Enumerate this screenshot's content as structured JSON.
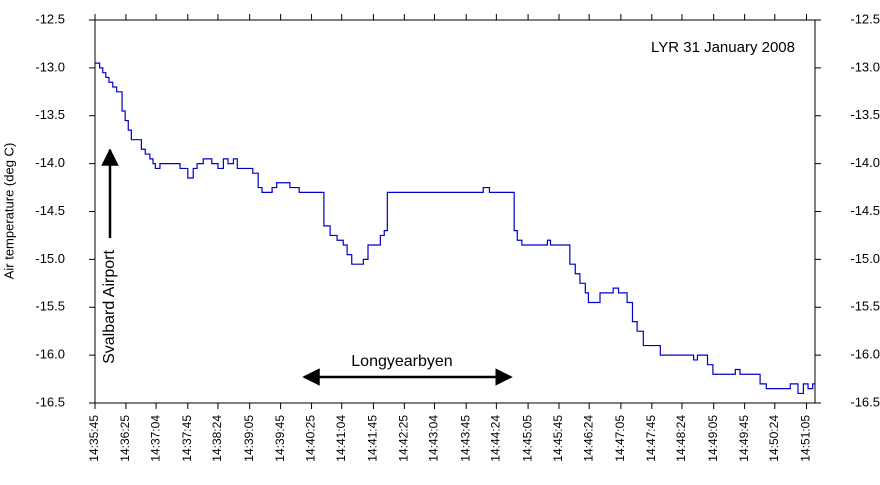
{
  "chart_data": {
    "type": "line",
    "title": "LYR 31 January 2008",
    "y_label": "Air temperature (deg C)",
    "annotations": [
      "Svalbard Airport",
      "Longyearbyen"
    ],
    "step": true,
    "xlim": [
      "14:35:45",
      "14:51:16"
    ],
    "xticks": [
      "14:35:45",
      "14:36:25",
      "14:37:04",
      "14:37:45",
      "14:38:24",
      "14:39:05",
      "14:39:45",
      "14:40:25",
      "14:41:04",
      "14:41:45",
      "14:42:25",
      "14:43:04",
      "14:43:45",
      "14:44:24",
      "14:45:05",
      "14:45:45",
      "14:46:24",
      "14:47:05",
      "14:47:45",
      "14:48:24",
      "14:49:05",
      "14:49:45",
      "14:50:24",
      "14:51:05"
    ],
    "ylim": [
      -16.5,
      -12.5
    ],
    "yticks": [
      -12.5,
      {
        "value": -13,
        "label": "-13.0"
      },
      -13.5,
      {
        "value": -14,
        "label": "-14.0"
      },
      -14.5,
      {
        "value": -15,
        "label": "-15.0"
      },
      -15.5,
      {
        "value": -16,
        "label": "-16.0"
      },
      -16.5
    ],
    "y2lim": [
      -16.5,
      -12.5
    ],
    "y2ticks": [
      -12.5,
      {
        "value": -13,
        "label": "-13.0"
      },
      -13.5,
      {
        "value": -14,
        "label": "-14.0"
      },
      -14.5,
      {
        "value": -15,
        "label": "-15.0"
      },
      -15.5,
      {
        "value": -16,
        "label": "-16.0"
      },
      -16.5
    ],
    "x": [
      "14:35:45",
      "14:35:51",
      "14:35:55",
      "14:35:59",
      "14:36:03",
      "14:36:08",
      "14:36:13",
      "14:36:20",
      "14:36:24",
      "14:36:28",
      "14:36:32",
      "14:36:45",
      "14:36:50",
      "14:36:56",
      "14:37:00",
      "14:37:03",
      "14:37:09",
      "14:37:35",
      "14:37:45",
      "14:37:52",
      "14:37:57",
      "14:38:05",
      "14:38:16",
      "14:38:24",
      "14:38:31",
      "14:38:37",
      "14:38:44",
      "14:38:49",
      "14:39:09",
      "14:39:16",
      "14:39:21",
      "14:39:34",
      "14:39:40",
      "14:39:57",
      "14:40:09",
      "14:40:41",
      "14:40:49",
      "14:40:58",
      "14:41:06",
      "14:41:11",
      "14:41:17",
      "14:41:32",
      "14:41:38",
      "14:41:54",
      "14:41:59",
      "14:42:03",
      "14:44:07",
      "14:44:15",
      "14:44:47",
      "14:44:51",
      "14:44:57",
      "14:45:30",
      "14:45:34",
      "14:45:59",
      "14:46:06",
      "14:46:12",
      "14:46:19",
      "14:46:23",
      "14:46:38",
      "14:46:55",
      "14:47:02",
      "14:47:13",
      "14:47:20",
      "14:47:26",
      "14:47:34",
      "14:47:56",
      "14:48:39",
      "14:48:44",
      "14:48:57",
      "14:49:04",
      "14:49:33",
      "14:49:39",
      "14:50:05",
      "14:50:13",
      "14:50:44",
      "14:50:54",
      "14:51:01",
      "14:51:07",
      "14:51:13"
    ],
    "series": [
      {
        "color": "#0000cc",
        "values": [
          -12.95,
          -13.0,
          -13.05,
          -13.1,
          -13.15,
          -13.2,
          -13.25,
          -13.45,
          -13.55,
          -13.65,
          -13.75,
          -13.85,
          -13.9,
          -13.95,
          -14.0,
          -14.05,
          -14.0,
          -14.05,
          -14.15,
          -14.05,
          -14.0,
          -13.95,
          -14.0,
          -14.05,
          -13.95,
          -14.0,
          -13.95,
          -14.05,
          -14.1,
          -14.25,
          -14.3,
          -14.25,
          -14.2,
          -14.25,
          -14.3,
          -14.65,
          -14.75,
          -14.8,
          -14.85,
          -14.95,
          -15.05,
          -15.0,
          -14.85,
          -14.75,
          -14.7,
          -14.3,
          -14.25,
          -14.3,
          -14.7,
          -14.8,
          -14.85,
          -14.8,
          -14.85,
          -15.05,
          -15.15,
          -15.25,
          -15.35,
          -15.45,
          -15.35,
          -15.3,
          -15.35,
          -15.45,
          -15.65,
          -15.75,
          -15.9,
          -16.0,
          -16.05,
          -16.0,
          -16.1,
          -16.2,
          -16.15,
          -16.2,
          -16.3,
          -16.35,
          -16.3,
          -16.4,
          -16.3,
          -16.35,
          -16.3
        ]
      }
    ]
  }
}
